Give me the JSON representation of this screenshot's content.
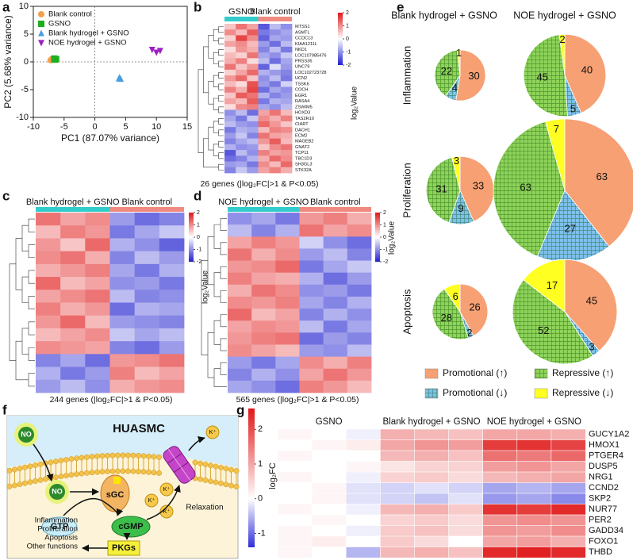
{
  "panel_labels": [
    "a",
    "b",
    "c",
    "d",
    "e",
    "f",
    "g"
  ],
  "chart_data": [
    {
      "type": "scatter",
      "xlabel": "PC1 (87.07% variance)",
      "ylabel": "PC2 (5.68% variance)",
      "xlim": [
        -10,
        15
      ],
      "xticks": [
        -10,
        -5,
        0,
        5,
        10,
        15
      ],
      "ylim": [
        -10,
        10
      ],
      "yticks": [
        -10,
        -5,
        0,
        5,
        10
      ],
      "series": [
        {
          "name": "Blank control",
          "color": "#f5a04a",
          "marker": "circle",
          "x": [
            -7.2,
            -7.0,
            -6.9
          ],
          "y": [
            0.3,
            0.5,
            0.4
          ]
        },
        {
          "name": "GSNO",
          "color": "#1fae1f",
          "marker": "square",
          "x": [
            -6.6,
            -6.3,
            -6.5
          ],
          "y": [
            0.6,
            0.5,
            0.4
          ]
        },
        {
          "name": "Blank hydrogel + GSNO",
          "color": "#4a9fe0",
          "marker": "triangle-up",
          "x": [
            4.0,
            4.2,
            3.9
          ],
          "y": [
            -2.8,
            -3.1,
            -3.0
          ]
        },
        {
          "name": "NOE hydrogel + GSNO",
          "color": "#9b1fc0",
          "marker": "triangle-down",
          "x": [
            9.3,
            10.0,
            10.6
          ],
          "y": [
            2.2,
            1.7,
            2.0
          ]
        }
      ]
    },
    {
      "type": "heatmap",
      "groups": [
        {
          "name": "GSNO",
          "color": "#33cccc"
        },
        {
          "name": "Blank control",
          "color": "#f08a80"
        }
      ],
      "row_labels": [
        "MTSS1",
        "ASMTL",
        "CCDC13",
        "KIAA1211L",
        "NKD1",
        "LOC107985476",
        "PRSS36",
        "UNC79",
        "LOC102723728",
        "UCN2",
        "TSSK6",
        "COCH",
        "EGR1",
        "RASA4",
        "ZSWIM5",
        "HOXD3",
        "TAS2R10",
        "CIART",
        "DACH1",
        "ECM2",
        "MAGEB2",
        "GNAT2",
        "TCP11",
        "TBC1D3",
        "SH3GL3",
        "STK32A"
      ],
      "values": [
        [
          0.5,
          1.2,
          0.8,
          -1.5,
          -0.6,
          -1.0
        ],
        [
          1.0,
          0.6,
          1.4,
          -1.2,
          -1.0,
          -0.8
        ],
        [
          0.4,
          1.6,
          1.0,
          -1.4,
          -0.8,
          -0.9
        ],
        [
          0.8,
          1.0,
          0.6,
          -0.9,
          -1.3,
          -0.6
        ],
        [
          0.3,
          0.9,
          0.7,
          -1.1,
          -0.6,
          -1.2
        ],
        [
          0.6,
          0.4,
          1.2,
          -0.8,
          -1.0,
          -0.5
        ],
        [
          0.7,
          1.1,
          0.3,
          -0.6,
          -1.3,
          -0.8
        ],
        [
          1.2,
          0.5,
          0.9,
          -1.4,
          -0.3,
          -0.9
        ],
        [
          0.4,
          0.8,
          1.3,
          -0.7,
          -0.9,
          -1.1
        ],
        [
          0.9,
          1.3,
          0.5,
          -1.0,
          -0.6,
          -1.2
        ],
        [
          0.6,
          0.3,
          1.5,
          -0.9,
          -1.2,
          -0.4
        ],
        [
          1.1,
          0.7,
          1.6,
          -1.3,
          -0.8,
          -1.0
        ],
        [
          0.5,
          1.4,
          1.2,
          -0.7,
          -1.1,
          -0.9
        ],
        [
          0.8,
          0.6,
          1.4,
          -1.2,
          -0.7,
          -0.8
        ],
        [
          0.3,
          1.0,
          1.1,
          -0.8,
          -1.0,
          -0.6
        ],
        [
          -1.0,
          -0.6,
          -1.3,
          0.8,
          1.2,
          0.6
        ],
        [
          -0.8,
          -1.2,
          -0.5,
          1.0,
          0.7,
          1.1
        ],
        [
          -0.6,
          -0.9,
          -1.0,
          1.3,
          0.9,
          0.5
        ],
        [
          -1.2,
          -0.7,
          -0.8,
          0.6,
          1.1,
          1.0
        ],
        [
          -0.9,
          -0.5,
          -1.1,
          1.2,
          0.8,
          0.7
        ],
        [
          -1.1,
          -0.8,
          -0.6,
          0.9,
          1.4,
          0.6
        ],
        [
          -0.7,
          -1.0,
          -0.9,
          0.5,
          1.0,
          1.2
        ],
        [
          -1.5,
          -0.6,
          -1.0,
          1.1,
          0.8,
          0.9
        ],
        [
          -1.3,
          -1.1,
          -0.7,
          0.7,
          1.3,
          1.0
        ],
        [
          -0.9,
          -0.8,
          -1.2,
          1.0,
          0.6,
          1.3
        ],
        [
          -1.1,
          -0.5,
          -0.9,
          0.8,
          1.1,
          0.7
        ]
      ],
      "colors": [
        "#2020d0",
        "#ffffff",
        "#e01818"
      ],
      "zlim": [
        -2,
        2
      ],
      "zticks": [
        2,
        1,
        0,
        -1,
        -2
      ],
      "colorbar_label": "log₂Value",
      "caption": "26 genes (|log₂FC|>1 & P<0.05)"
    },
    {
      "type": "heatmap",
      "groups": [
        {
          "name": "Blank hydrogel + GSNO",
          "color": "#33cccc"
        },
        {
          "name": "Blank control",
          "color": "#f08a80"
        }
      ],
      "values": [
        [
          1.2,
          0.8,
          1.0,
          -0.9,
          -1.3,
          -1.1
        ],
        [
          0.6,
          1.1,
          0.9,
          -1.2,
          -0.8,
          -0.5
        ],
        [
          0.9,
          0.5,
          1.3,
          -0.7,
          -1.0,
          -1.4
        ],
        [
          1.0,
          1.2,
          0.7,
          -1.1,
          -0.6,
          -0.9
        ],
        [
          0.7,
          0.9,
          1.1,
          -0.8,
          -1.2,
          -0.7
        ],
        [
          1.3,
          0.6,
          0.8,
          -1.0,
          -0.9,
          -1.2
        ],
        [
          0.8,
          1.0,
          1.2,
          -0.6,
          -1.1,
          -1.0
        ],
        [
          1.1,
          0.7,
          0.9,
          -1.3,
          -0.7,
          -0.8
        ],
        [
          0.9,
          1.3,
          0.6,
          -0.9,
          -1.0,
          -1.1
        ],
        [
          0.6,
          0.8,
          1.0,
          -0.5,
          -0.8,
          -0.6
        ],
        [
          1.0,
          0.9,
          0.8,
          -1.1,
          -1.3,
          -0.9
        ],
        [
          -1.1,
          -0.8,
          -1.3,
          0.9,
          1.0,
          1.2
        ],
        [
          -0.7,
          -1.2,
          -0.9,
          1.1,
          0.6,
          0.8
        ],
        [
          -0.9,
          -0.6,
          -1.0,
          0.7,
          0.9,
          1.0
        ]
      ],
      "colors": [
        "#2020d0",
        "#ffffff",
        "#e01818"
      ],
      "zlim": [
        -2,
        2
      ],
      "zticks": [
        2,
        1,
        0,
        -1,
        -2
      ],
      "colorbar_label": "log₂Value",
      "caption": "244 genes (|log₂FC|>1 & P<0.05)"
    },
    {
      "type": "heatmap",
      "groups": [
        {
          "name": "NOE hydrogel + GSNO",
          "color": "#33cccc"
        },
        {
          "name": "Blank control",
          "color": "#f08a80"
        }
      ],
      "values": [
        [
          -1.0,
          -0.8,
          -1.2,
          0.9,
          1.1,
          0.7
        ],
        [
          -0.6,
          -1.1,
          -0.7,
          1.2,
          0.8,
          1.0
        ],
        [
          0.8,
          1.1,
          0.9,
          -0.4,
          -1.0,
          -1.3
        ],
        [
          1.2,
          0.7,
          1.0,
          -0.9,
          -0.6,
          -1.1
        ],
        [
          0.9,
          1.0,
          1.3,
          -1.2,
          -0.8,
          -0.5
        ],
        [
          1.1,
          0.8,
          0.7,
          -0.7,
          -1.3,
          -0.9
        ],
        [
          0.7,
          1.2,
          1.0,
          -1.0,
          -0.9,
          -1.2
        ],
        [
          1.0,
          0.9,
          1.1,
          -0.8,
          -1.1,
          -0.7
        ],
        [
          1.3,
          0.6,
          0.8,
          -1.1,
          -0.7,
          -1.0
        ],
        [
          0.8,
          1.0,
          0.9,
          -0.6,
          -1.2,
          -0.8
        ],
        [
          0.9,
          1.1,
          1.2,
          -1.3,
          -0.9,
          -1.1
        ],
        [
          1.0,
          0.8,
          0.6,
          -0.9,
          -1.0,
          -0.6
        ],
        [
          -0.9,
          -1.2,
          -0.8,
          1.0,
          0.7,
          1.1
        ],
        [
          -1.1,
          -0.7,
          -1.0,
          0.8,
          1.2,
          0.9
        ],
        [
          -0.8,
          -1.0,
          -1.3,
          1.1,
          0.9,
          0.6
        ]
      ],
      "colors": [
        "#2020d0",
        "#ffffff",
        "#e01818"
      ],
      "zlim": [
        -2,
        2
      ],
      "zticks": [
        2,
        1,
        0,
        -1,
        -2
      ],
      "colorbar_label": "log₂Value",
      "caption": "565 genes (|log₂FC|>1 & P<0.05)"
    },
    {
      "type": "pie",
      "columns": [
        "Blank hydrogel + GSNO",
        "NOE hydrogel + GSNO"
      ],
      "rows": [
        "Inflammation",
        "Proliferation",
        "Apoptosis"
      ],
      "categories": [
        "Promotional (↑)",
        "Promotional (↓)",
        "Repressive (↑)",
        "Repressive (↓)"
      ],
      "colors": [
        "#f7a073",
        "#7ec0ea",
        "#8fd35a",
        "#ffff22"
      ],
      "hatched": [
        false,
        true,
        true,
        false
      ],
      "values": [
        [
          [
            30,
            4,
            22,
            1
          ],
          [
            40,
            5,
            45,
            2
          ]
        ],
        [
          [
            33,
            9,
            31,
            3
          ],
          [
            63,
            27,
            63,
            7
          ]
        ],
        [
          [
            26,
            2,
            28,
            6
          ],
          [
            45,
            3,
            52,
            17
          ]
        ]
      ]
    },
    {
      "type": "heatmap",
      "groups": [
        {
          "name": "GSNO"
        },
        {
          "name": "Blank hydrogel + GSNO"
        },
        {
          "name": "NOE hydrogel + GSNO"
        }
      ],
      "row_labels": [
        "GUCY1A2",
        "HMOX1",
        "PTGER4",
        "DUSP5",
        "NRG1",
        "CCND2",
        "SKP2",
        "NUR77",
        "PER2",
        "GADD34",
        "FOXO1",
        "THBD"
      ],
      "values": [
        [
          0.1,
          0.0,
          -0.1,
          0.9,
          0.8,
          0.7,
          1.0,
          1.0,
          0.9
        ],
        [
          0.0,
          0.1,
          0.2,
          1.0,
          1.2,
          1.1,
          2.2,
          2.3,
          2.1
        ],
        [
          0.1,
          0.0,
          0.0,
          0.8,
          0.9,
          0.7,
          1.6,
          1.5,
          1.7
        ],
        [
          0.0,
          0.0,
          0.1,
          0.3,
          0.5,
          0.5,
          1.1,
          1.2,
          1.0
        ],
        [
          0.1,
          0.0,
          -0.1,
          0.5,
          0.6,
          0.4,
          0.8,
          0.9,
          1.0
        ],
        [
          0.0,
          0.1,
          -0.2,
          -0.3,
          -0.2,
          -0.3,
          -0.6,
          -0.5,
          -0.6
        ],
        [
          0.0,
          0.1,
          -0.2,
          -0.3,
          -0.4,
          -0.2,
          -0.7,
          -0.6,
          -0.8
        ],
        [
          0.1,
          0.0,
          -0.1,
          0.8,
          0.9,
          0.6,
          2.3,
          2.2,
          2.4
        ],
        [
          0.0,
          0.1,
          0.0,
          0.5,
          0.6,
          0.4,
          1.2,
          1.3,
          1.2
        ],
        [
          0.1,
          0.0,
          -0.1,
          0.6,
          0.7,
          0.4,
          1.2,
          1.1,
          1.3
        ],
        [
          0.1,
          0.2,
          0.0,
          0.6,
          0.4,
          0.0,
          1.0,
          1.1,
          0.9
        ],
        [
          0.1,
          0.0,
          -0.5,
          0.8,
          0.9,
          0.7,
          2.4,
          2.5,
          2.4
        ]
      ],
      "colors": [
        "#3030d8",
        "#ffffff",
        "#e01818"
      ],
      "zlim": [
        -1.4,
        2.6
      ],
      "zticks": [
        2,
        1,
        0,
        -1
      ],
      "colorbar_label": "log₂FC"
    }
  ],
  "pathway": {
    "cell": "HUASMC",
    "no": [
      "NO",
      "NO"
    ],
    "sgc": "sGC",
    "k_ions": [
      "K⁺",
      "K⁺",
      "K⁺",
      "K⁺"
    ],
    "relaxation": "Relaxation",
    "gtp": "GTP",
    "cgmp": "cGMP",
    "pkgs": "PKGs",
    "functions": [
      "Inflammation",
      "Proliferation",
      "Apoptosis",
      "Other functions"
    ]
  }
}
